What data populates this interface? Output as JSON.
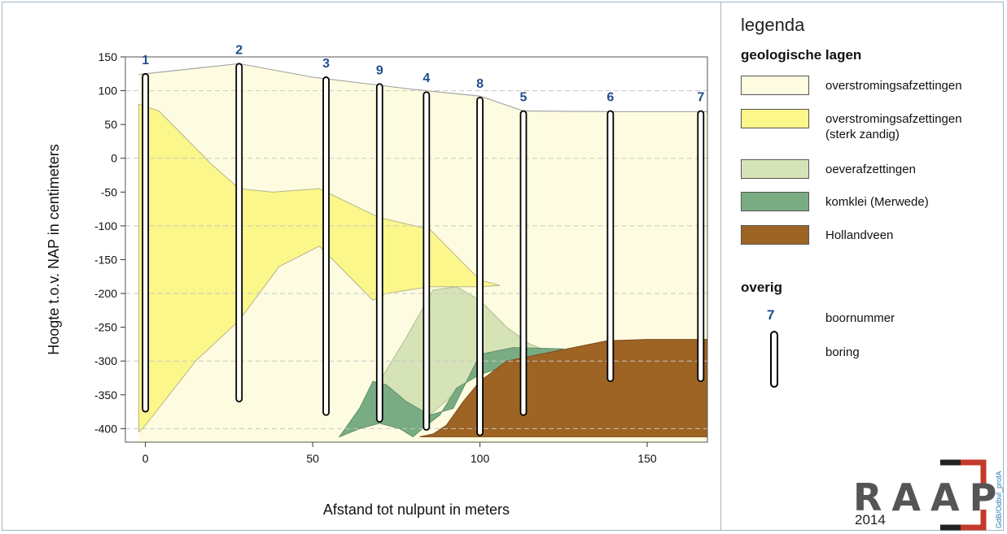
{
  "chart_data": {
    "type": "area",
    "title": "",
    "xlabel": "Afstand tot nulpunt in meters",
    "ylabel": "Hoogte t.o.v. NAP in centimeters",
    "xlim": [
      -6,
      168
    ],
    "ylim": [
      -420,
      150
    ],
    "x_ticks": [
      0,
      50,
      100,
      150
    ],
    "y_ticks": [
      150,
      100,
      50,
      0,
      -50,
      -100,
      -150,
      -200,
      -250,
      -300,
      -350,
      -400
    ],
    "grid": "dashed horizontal at -400, -300, -200, -100, 0, 100",
    "surface": {
      "x": [
        -2,
        28,
        50,
        80,
        100,
        113,
        140,
        168
      ],
      "y": [
        124,
        140,
        120,
        102,
        92,
        70,
        69,
        69
      ]
    },
    "layers": [
      {
        "name": "overstromingsafzettingen",
        "color": "#fdfce0",
        "extent": "background to surface"
      },
      {
        "name": "overstromingsafzettingen (sterk zandig)",
        "color": "#fbf78a",
        "top": {
          "x": [
            -2,
            4,
            10,
            20,
            28,
            38,
            52,
            70,
            85,
            100,
            106
          ],
          "y": [
            80,
            70,
            40,
            -10,
            -45,
            -50,
            -45,
            -88,
            -105,
            -180,
            -188
          ]
        },
        "bottom": {
          "x": [
            106,
            100,
            85,
            72,
            68,
            60,
            52,
            40,
            28,
            15,
            0,
            -2
          ],
          "y": [
            -188,
            -190,
            -190,
            -200,
            -210,
            -170,
            -130,
            -160,
            -240,
            -300,
            -395,
            -405
          ]
        }
      },
      {
        "name": "oeverafzettingen",
        "color": "#d6e3b6",
        "outline": {
          "x": [
            64,
            70,
            78,
            86,
            93,
            100,
            108,
            115,
            120,
            112,
            100,
            92,
            85,
            78,
            72,
            68,
            64
          ],
          "y": [
            -380,
            -330,
            -265,
            -195,
            -190,
            -210,
            -250,
            -275,
            -285,
            -290,
            -310,
            -350,
            -380,
            -365,
            -360,
            -368,
            -380
          ]
        }
      },
      {
        "name": "komklei (Merwede)",
        "color": "#7aac84",
        "outline": {
          "x": [
            58,
            64,
            68,
            72,
            78,
            85,
            92,
            100,
            110,
            125,
            112,
            100,
            93,
            88,
            84,
            80,
            76,
            70,
            64,
            58
          ],
          "y": [
            -412,
            -370,
            -330,
            -335,
            -360,
            -380,
            -370,
            -290,
            -280,
            -282,
            -300,
            -320,
            -340,
            -380,
            -395,
            -412,
            -400,
            -392,
            -400,
            -412
          ]
        }
      },
      {
        "name": "Hollandveen",
        "color": "#9e6424",
        "outline": {
          "x": [
            82,
            86,
            90,
            95,
            100,
            108,
            118,
            128,
            138,
            150,
            168,
            168,
            82
          ],
          "y": [
            -412,
            -408,
            -395,
            -360,
            -330,
            -300,
            -290,
            -280,
            -270,
            -268,
            -268,
            -412,
            -412
          ]
        }
      }
    ],
    "borings": [
      {
        "label": "1",
        "x": 0,
        "top": 125,
        "bottom": -375
      },
      {
        "label": "2",
        "x": 28,
        "top": 140,
        "bottom": -360
      },
      {
        "label": "3",
        "x": 54,
        "top": 120,
        "bottom": -380
      },
      {
        "label": "9",
        "x": 70,
        "top": 110,
        "bottom": -390
      },
      {
        "label": "4",
        "x": 84,
        "top": 98,
        "bottom": -402
      },
      {
        "label": "8",
        "x": 100,
        "top": 90,
        "bottom": -410
      },
      {
        "label": "5",
        "x": 113,
        "top": 70,
        "bottom": -380
      },
      {
        "label": "6",
        "x": 139,
        "top": 70,
        "bottom": -330
      },
      {
        "label": "7",
        "x": 166,
        "top": 70,
        "bottom": -330
      }
    ]
  },
  "legend": {
    "title": "legenda",
    "heading_layers": "geologische lagen",
    "items": [
      {
        "label": "overstromingsafzettingen",
        "color": "#fdfce0"
      },
      {
        "label": "overstromingsafzettingen (sterk zandig)",
        "color": "#fbf78a"
      },
      {
        "label": "oeverafzettingen",
        "color": "#d6e3b6"
      },
      {
        "label": "komklei (Merwede)",
        "color": "#7aac84"
      },
      {
        "label": "Hollandveen",
        "color": "#9e6424"
      }
    ],
    "heading_other": "overig",
    "boornummer_example": "7",
    "boornummer_label": "boornummer",
    "boring_label": "boring"
  },
  "logo": {
    "text": "RAAP",
    "year": "2014",
    "code": "GdB/Odbvl_profA"
  }
}
